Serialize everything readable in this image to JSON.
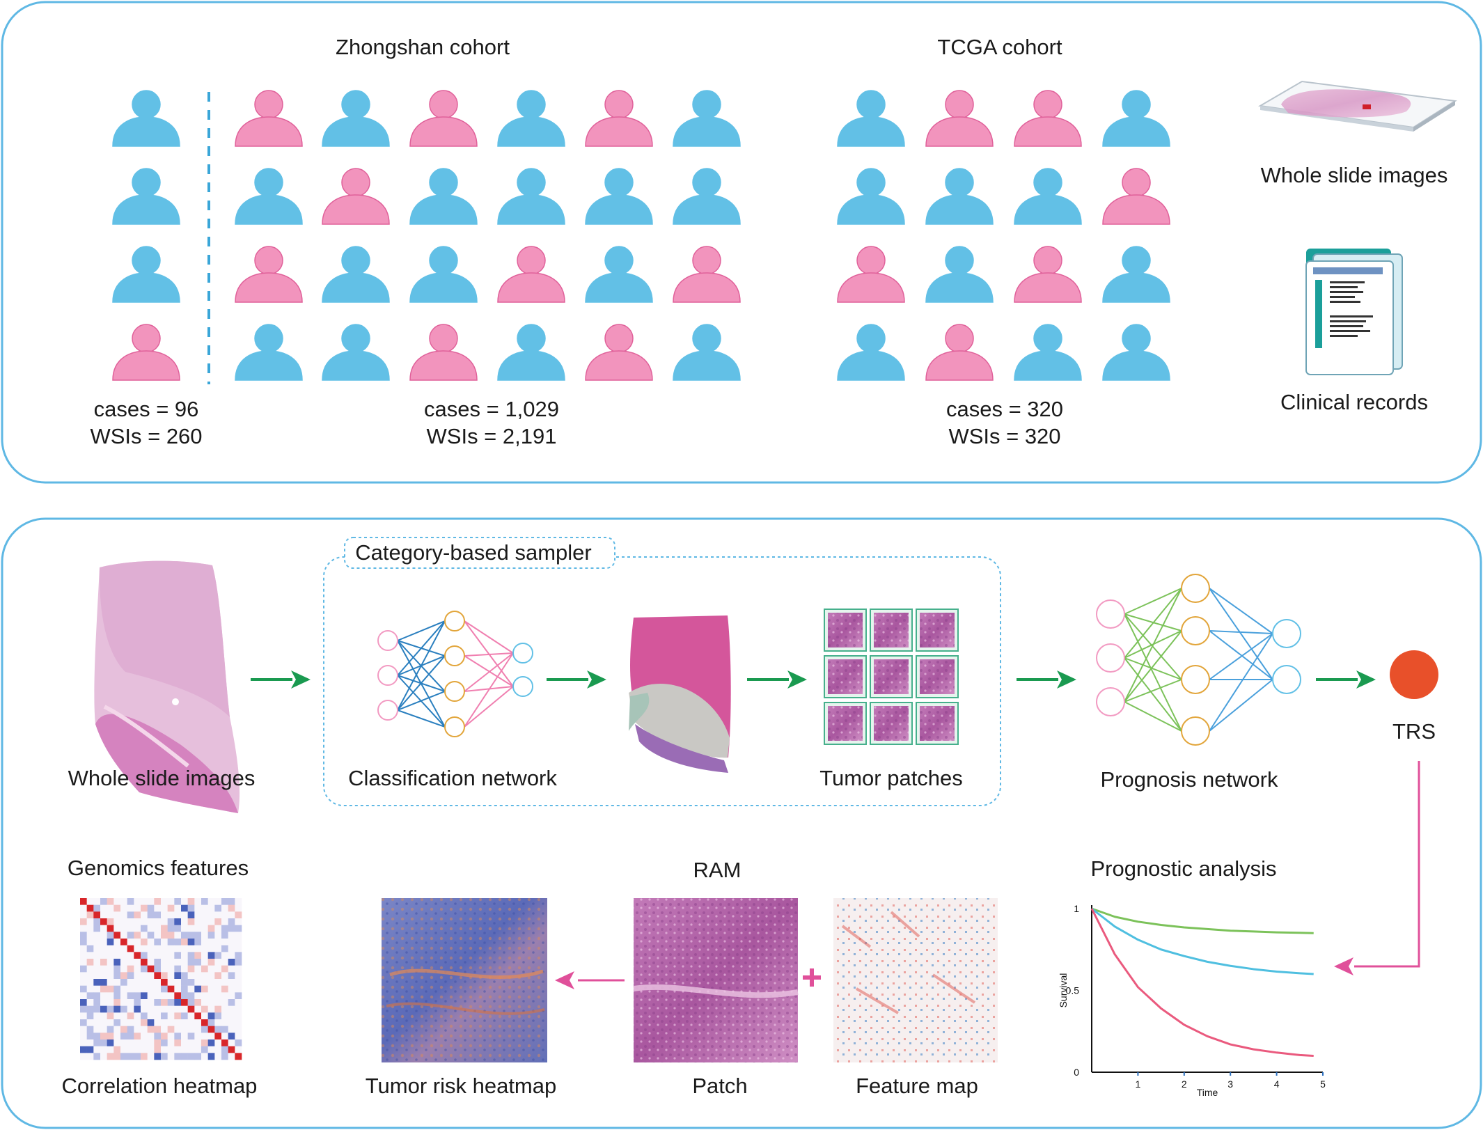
{
  "top_panel": {
    "zhongshan_title": "Zhongshan cohort",
    "tcga_title": "TCGA cohort",
    "zhongshan_a": {
      "cases": "cases = 96",
      "wsis": "WSIs = 260"
    },
    "zhongshan_b": {
      "cases": "cases = 1,029",
      "wsis": "WSIs = 2,191"
    },
    "tcga": {
      "cases": "cases = 320",
      "wsis": "WSIs = 320"
    },
    "wsi_label": "Whole slide images",
    "clinical_label": "Clinical records",
    "colors": {
      "blue": "#62c0e6",
      "pink": "#f294bd",
      "pink_stroke": "#e0619a",
      "frame": "#5fb8e4"
    },
    "grid_a": [
      [
        "b"
      ],
      [
        "b"
      ],
      [
        "b"
      ],
      [
        "p"
      ]
    ],
    "grid_b": [
      [
        "p",
        "b",
        "p",
        "b",
        "p",
        "b"
      ],
      [
        "b",
        "p",
        "b",
        "b",
        "b",
        "b"
      ],
      [
        "p",
        "b",
        "b",
        "p",
        "b",
        "p"
      ],
      [
        "b",
        "b",
        "p",
        "b",
        "p",
        "b"
      ]
    ],
    "grid_tcga": [
      [
        "b",
        "p",
        "p",
        "b"
      ],
      [
        "b",
        "b",
        "b",
        "p"
      ],
      [
        "p",
        "b",
        "p",
        "b"
      ],
      [
        "b",
        "p",
        "b",
        "b"
      ]
    ]
  },
  "pipeline": {
    "sampler_title": "Category-based sampler",
    "wsi_label": "Whole slide images",
    "classification_label": "Classification network",
    "tumor_patches_label": "Tumor patches",
    "prognosis_label": "Prognosis network",
    "trs_label": "TRS",
    "genomics_title": "Genomics features",
    "correlation_label": "Correlation heatmap",
    "ram_title": "RAM",
    "risk_heatmap_label": "Tumor risk heatmap",
    "patch_label": "Patch",
    "feature_map_label": "Feature map",
    "prognostic_title": "Prognostic analysis",
    "colors": {
      "arrow_green": "#1a9a50",
      "arrow_pink": "#e0509a",
      "trs": "#e8502a",
      "sampler_frame": "#5fb8e4"
    }
  },
  "chart_data": {
    "type": "line",
    "xlabel": "Time",
    "ylabel": "Survival",
    "x_ticks": [
      "1",
      "2",
      "3",
      "4",
      "5"
    ],
    "y_ticks": [
      "0",
      "0.5",
      "1"
    ],
    "xlim": [
      0,
      5
    ],
    "ylim": [
      0,
      1
    ],
    "series": [
      {
        "color": "#7cc25a",
        "x": [
          0,
          0.5,
          1,
          1.5,
          2,
          2.5,
          3,
          3.5,
          4,
          4.5,
          4.8
        ],
        "y": [
          1,
          0.95,
          0.92,
          0.9,
          0.885,
          0.875,
          0.865,
          0.86,
          0.855,
          0.852,
          0.85
        ]
      },
      {
        "color": "#4fbfe0",
        "x": [
          0,
          0.5,
          1,
          1.5,
          2,
          2.5,
          3,
          3.5,
          4,
          4.5,
          4.8
        ],
        "y": [
          1,
          0.89,
          0.81,
          0.75,
          0.71,
          0.675,
          0.65,
          0.63,
          0.615,
          0.605,
          0.6
        ]
      },
      {
        "color": "#ea5a7e",
        "x": [
          0,
          0.5,
          1,
          1.5,
          2,
          2.5,
          3,
          3.5,
          4,
          4.5,
          4.8
        ],
        "y": [
          1,
          0.72,
          0.52,
          0.39,
          0.29,
          0.22,
          0.17,
          0.14,
          0.12,
          0.105,
          0.1
        ]
      }
    ]
  }
}
